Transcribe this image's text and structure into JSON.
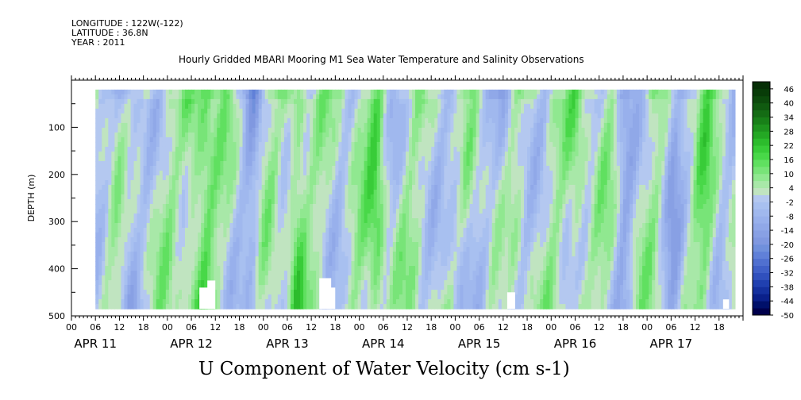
{
  "header": {
    "longitude": "LONGITUDE : 122W(-122)",
    "latitude": "LATITUDE : 36.8N",
    "year": "YEAR : 2011"
  },
  "title": "Hourly Gridded MBARI Mooring M1 Sea Water Temperature and Salinity Observations",
  "footer_title": "U Component of Water Velocity (cm s-1)",
  "chart_data": {
    "type": "heatmap",
    "ylabel": "DEPTH (m)",
    "ylim": [
      500,
      0
    ],
    "y_ticks": [
      100,
      200,
      300,
      400,
      500
    ],
    "x_hour_ticks": [
      "00",
      "06",
      "12",
      "18",
      "00",
      "06",
      "12",
      "18",
      "00",
      "06",
      "12",
      "18",
      "00",
      "06",
      "12",
      "18",
      "00",
      "06",
      "12",
      "18",
      "00",
      "06",
      "12",
      "18",
      "00",
      "06",
      "12",
      "18"
    ],
    "x_day_labels": [
      "APR 11",
      "APR 12",
      "APR 13",
      "APR 14",
      "APR 15",
      "APR 16",
      "APR 17"
    ],
    "x_range_hours": [
      0,
      168
    ],
    "data_hour_range": [
      6,
      166
    ],
    "data_depth_range": [
      20,
      485
    ],
    "colorbar": {
      "labels": [
        "46",
        "40",
        "34",
        "28",
        "22",
        "16",
        "10",
        "4",
        "-2",
        "-8",
        "-14",
        "-20",
        "-26",
        "-32",
        "-38",
        "-44",
        "-50"
      ],
      "levels": [
        -50,
        -47,
        -44,
        -41,
        -38,
        -35,
        -32,
        -29,
        -26,
        -23,
        -20,
        -17,
        -14,
        -11,
        -8,
        -5,
        -2,
        1,
        4,
        7,
        10,
        13,
        16,
        19,
        22,
        25,
        28,
        31,
        34,
        37,
        40,
        43,
        46,
        49
      ],
      "colors": [
        "#00004c",
        "#00106a",
        "#0a208a",
        "#14309e",
        "#2040b0",
        "#3050bd",
        "#4060c8",
        "#5070d0",
        "#6080d8",
        "#7090dc",
        "#8098e0",
        "#88a0e4",
        "#90a8e8",
        "#98b0ec",
        "#a0b8ee",
        "#a8c0f0",
        "#b4c8f0",
        "#c0e4c0",
        "#a8e8a8",
        "#90e890",
        "#78e478",
        "#60e060",
        "#48d848",
        "#38cc38",
        "#2cbc2c",
        "#24a824",
        "#1e941e",
        "#188018",
        "#146c14",
        "#105a10",
        "#0c4a0c",
        "#083c08",
        "#062e06"
      ]
    }
  }
}
